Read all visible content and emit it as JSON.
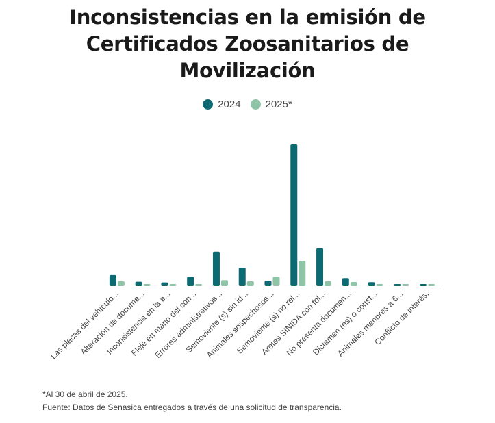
{
  "chart_data": {
    "type": "bar",
    "title": "Inconsistencias en la emisión de Certificados Zoosanitarios de Movilización",
    "xlabel": "",
    "ylabel": "",
    "ylim": [
      0,
      210
    ],
    "grid": false,
    "legend_position": "top-center",
    "categories": [
      "Las placas del vehículo...",
      "Alteración de docume...",
      "Inconsistencia en la e...",
      "Fleje en mano del con...",
      "Errores administrativos...",
      "Semoviente (s) sin id...",
      "Animales sospechosos...",
      "Semoviente (s) no rel...",
      "Aretes SINIDA con fol...",
      "No presenta documen...",
      "Dictamen (es) o const...",
      "Animales menores a 6...",
      "Conflicto de interés."
    ],
    "series": [
      {
        "name": "2024",
        "color": "#0b6a72",
        "values": [
          14,
          4.3,
          3.3,
          11.7,
          48,
          24.7,
          6,
          204,
          53,
          9.7,
          3.7,
          1,
          1
        ]
      },
      {
        "name": "2025*",
        "color": "#8fc4a6",
        "values": [
          5,
          1,
          0.5,
          0.5,
          6.7,
          5,
          11.7,
          34.7,
          5,
          4,
          0.5,
          0.5,
          0.5
        ]
      }
    ]
  },
  "notes": {
    "line1": "*Al 30 de abril de 2025.",
    "line2": "Fuente: Datos de Senasica entregados a través de una solicitud de transparencia."
  }
}
